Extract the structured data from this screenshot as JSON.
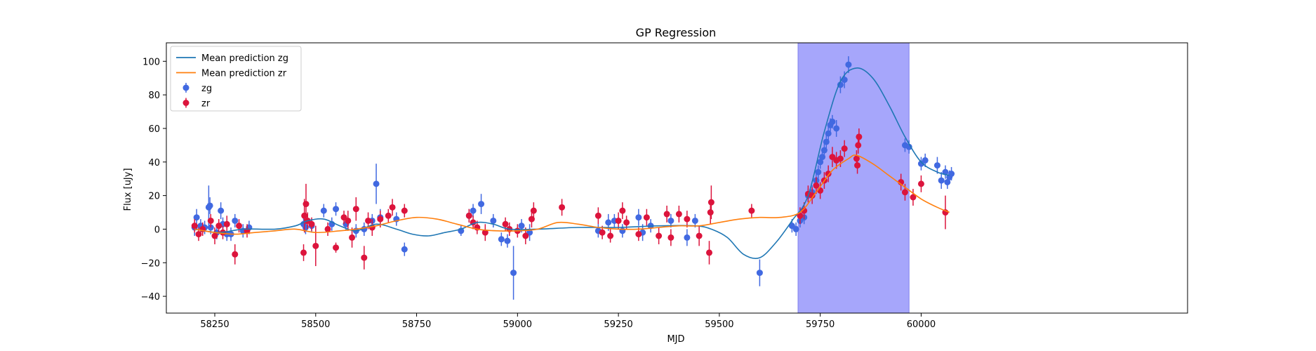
{
  "chart_data": {
    "type": "scatter",
    "title": "GP Regression",
    "xlabel": "MJD",
    "ylabel": "Flux [uJy]",
    "xlim": [
      58130,
      60660
    ],
    "ylim": [
      -50,
      111
    ],
    "x_ticks": [
      58250,
      58500,
      58750,
      59000,
      59250,
      59500,
      59750,
      60000
    ],
    "y_ticks": [
      -40,
      -20,
      0,
      20,
      40,
      60,
      80,
      100
    ],
    "grid": false,
    "legend_position": "top-left",
    "shaded_region": {
      "x_start": 59695,
      "x_end": 59970,
      "color": "#a6a6fb"
    },
    "series": [
      {
        "name": "Mean prediction zg",
        "kind": "line",
        "color": "#1f77b4",
        "x": [
          58200,
          58260,
          58320,
          58400,
          58450,
          58480,
          58520,
          58560,
          58600,
          58650,
          58700,
          58740,
          58780,
          58820,
          58860,
          58900,
          58940,
          58980,
          59050,
          59150,
          59250,
          59350,
          59440,
          59480,
          59520,
          59560,
          59600,
          59640,
          59680,
          59720,
          59760,
          59800,
          59840,
          59880,
          59920,
          59960,
          60000,
          60040,
          60070
        ],
        "y": [
          0,
          -2,
          0,
          0,
          2,
          5,
          6,
          2,
          -1,
          3,
          0,
          -3,
          -4,
          -2,
          0,
          4,
          3,
          0,
          0,
          1,
          1,
          2,
          2,
          0,
          -5,
          -15,
          -17,
          -8,
          5,
          20,
          58,
          88,
          96,
          90,
          74,
          55,
          40,
          34,
          32
        ]
      },
      {
        "name": "Mean prediction zr",
        "kind": "line",
        "color": "#ff7f0e",
        "x": [
          58200,
          58250,
          58300,
          58350,
          58400,
          58450,
          58500,
          58560,
          58600,
          58650,
          58700,
          58750,
          58800,
          58850,
          58900,
          58950,
          59000,
          59050,
          59100,
          59150,
          59200,
          59250,
          59300,
          59350,
          59400,
          59450,
          59500,
          59550,
          59600,
          59650,
          59700,
          59740,
          59780,
          59820,
          59840,
          59880,
          59920,
          59960,
          60000,
          60040,
          60070
        ],
        "y": [
          0,
          -2,
          -3,
          -2,
          -1,
          0,
          -2,
          -1,
          0,
          2,
          5,
          7,
          6,
          3,
          0,
          -1,
          -1,
          0,
          4,
          3,
          1,
          0,
          0,
          1,
          2,
          2,
          4,
          6,
          7,
          7,
          10,
          22,
          35,
          42,
          44,
          39,
          32,
          25,
          18,
          13,
          10
        ]
      },
      {
        "name": "zg",
        "kind": "scatter",
        "color": "#4169e1",
        "x": [
          58200,
          58205,
          58215,
          58225,
          58235,
          58238,
          58240,
          58255,
          58265,
          58270,
          58280,
          58290,
          58300,
          58320,
          58335,
          58470,
          58475,
          58490,
          58520,
          58540,
          58550,
          58575,
          58600,
          58620,
          58640,
          58650,
          58660,
          58700,
          58720,
          58860,
          58880,
          58890,
          58910,
          58940,
          58960,
          58975,
          58990,
          59010,
          59030,
          59200,
          59225,
          59240,
          59260,
          59300,
          59310,
          59330,
          59380,
          59420,
          59440,
          59600,
          59680,
          59690,
          59700,
          59710,
          59720,
          59730,
          59740,
          59745,
          59750,
          59755,
          59760,
          59765,
          59770,
          59775,
          59780,
          59790,
          59800,
          59810,
          59820,
          59960,
          59970,
          60000,
          60010,
          60040,
          60050,
          60060,
          60065,
          60070,
          60075
        ],
        "y": [
          1,
          7,
          2,
          1,
          13,
          14,
          1,
          -2,
          11,
          3,
          -3,
          -3,
          5,
          -1,
          1,
          3,
          1,
          2,
          11,
          3,
          12,
          3,
          -1,
          0,
          5,
          27,
          7,
          6,
          -12,
          -1,
          8,
          11,
          15,
          5,
          -6,
          -7,
          -26,
          2,
          -2,
          -1,
          4,
          5,
          -1,
          7,
          -2,
          2,
          5,
          -5,
          5,
          -26,
          2,
          0,
          5,
          7,
          20,
          22,
          29,
          34,
          40,
          43,
          47,
          52,
          57,
          62,
          64,
          60,
          86,
          89,
          98,
          50,
          49,
          39,
          41,
          38,
          29,
          34,
          28,
          31,
          33
        ],
        "err": [
          5,
          5,
          4,
          4,
          13,
          5,
          4,
          4,
          5,
          4,
          4,
          4,
          4,
          4,
          4,
          4,
          4,
          4,
          4,
          4,
          4,
          4,
          4,
          4,
          4,
          12,
          5,
          4,
          4,
          3,
          4,
          4,
          6,
          4,
          4,
          4,
          16,
          4,
          5,
          4,
          5,
          4,
          4,
          5,
          5,
          4,
          4,
          5,
          4,
          8,
          4,
          4,
          4,
          4,
          4,
          4,
          4,
          4,
          4,
          4,
          4,
          4,
          4,
          4,
          4,
          5,
          5,
          5,
          5,
          4,
          4,
          4,
          4,
          5,
          5,
          4,
          4,
          4,
          4
        ]
      },
      {
        "name": "zr",
        "kind": "scatter",
        "color": "#dc143c",
        "x": [
          58200,
          58210,
          58220,
          58240,
          58250,
          58260,
          58270,
          58280,
          58300,
          58310,
          58330,
          58470,
          58472,
          58476,
          58480,
          58490,
          58500,
          58530,
          58550,
          58570,
          58580,
          58590,
          58600,
          58620,
          58630,
          58640,
          58660,
          58680,
          58690,
          58720,
          58880,
          58890,
          58900,
          58920,
          58970,
          58980,
          59000,
          59020,
          59035,
          59040,
          59110,
          59200,
          59210,
          59230,
          59250,
          59260,
          59270,
          59300,
          59320,
          59350,
          59370,
          59380,
          59400,
          59420,
          59450,
          59475,
          59478,
          59480,
          59580,
          59700,
          59710,
          59720,
          59730,
          59740,
          59750,
          59760,
          59770,
          59780,
          59790,
          59800,
          59810,
          59840,
          59842,
          59844,
          59846,
          59950,
          59960,
          59980,
          60000,
          60060
        ],
        "y": [
          2,
          -3,
          0,
          5,
          -4,
          2,
          -2,
          3,
          -15,
          2,
          -1,
          -14,
          8,
          15,
          5,
          3,
          -10,
          0,
          -11,
          7,
          5,
          -5,
          12,
          -17,
          5,
          1,
          6,
          8,
          13,
          11,
          8,
          4,
          1,
          -2,
          3,
          0,
          -1,
          -4,
          6,
          11,
          13,
          8,
          -2,
          -4,
          5,
          11,
          4,
          -3,
          7,
          -4,
          9,
          -5,
          9,
          6,
          -4,
          -14,
          10,
          16,
          11,
          8,
          11,
          21,
          20,
          26,
          23,
          29,
          33,
          43,
          41,
          42,
          48,
          42,
          38,
          50,
          55,
          28,
          22,
          19,
          27,
          10
        ],
        "err": [
          4,
          4,
          4,
          4,
          5,
          4,
          4,
          5,
          6,
          4,
          4,
          5,
          10,
          12,
          5,
          4,
          12,
          4,
          3,
          4,
          6,
          6,
          7,
          7,
          5,
          5,
          5,
          4,
          5,
          4,
          4,
          4,
          4,
          5,
          4,
          4,
          4,
          5,
          5,
          5,
          5,
          5,
          4,
          4,
          5,
          5,
          4,
          4,
          5,
          5,
          5,
          5,
          5,
          5,
          6,
          7,
          7,
          10,
          4,
          5,
          5,
          5,
          5,
          5,
          5,
          5,
          5,
          6,
          5,
          5,
          5,
          5,
          5,
          5,
          5,
          5,
          5,
          5,
          5,
          10
        ]
      }
    ]
  }
}
